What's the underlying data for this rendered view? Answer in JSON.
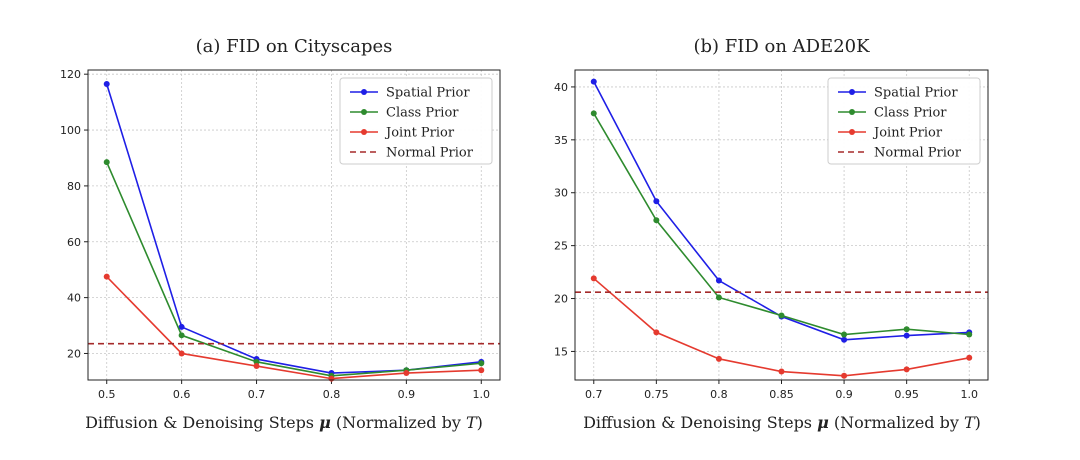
{
  "chart_data": [
    {
      "id": "cityscapes",
      "type": "line",
      "title": "(a) FID on Cityscapes",
      "xlabel_prefix": "Diffusion & Denoising Steps ",
      "xlabel_mu": "μ",
      "xlabel_mid": " (Normalized by ",
      "xlabel_T": "T",
      "xlabel_suffix": ")",
      "ylabel": "",
      "x": [
        0.5,
        0.6,
        0.7,
        0.8,
        0.9,
        1.0
      ],
      "xticks": [
        "0.5",
        "0.6",
        "0.7",
        "0.8",
        "0.9",
        "1.0"
      ],
      "xlim": [
        0.475,
        1.025
      ],
      "yticks": [
        20,
        40,
        60,
        80,
        100,
        120
      ],
      "ytick_labels": [
        "20",
        "40",
        "60",
        "80",
        "100",
        "120"
      ],
      "ylim": [
        10.5,
        121.5
      ],
      "grid": true,
      "legend_position": "top-right",
      "series": [
        {
          "name": "Spatial Prior",
          "color": "#1f1fe6",
          "style": "line-marker",
          "values": [
            116.5,
            29.5,
            18.0,
            13.0,
            14.0,
            17.0
          ]
        },
        {
          "name": "Class Prior",
          "color": "#2e8b2e",
          "style": "line-marker",
          "values": [
            88.5,
            26.5,
            17.0,
            12.0,
            14.0,
            16.5
          ]
        },
        {
          "name": "Joint Prior",
          "color": "#e53a2f",
          "style": "line-marker",
          "values": [
            47.5,
            20.0,
            15.5,
            11.0,
            13.0,
            14.0
          ]
        },
        {
          "name": "Normal Prior",
          "color": "#a52a2a",
          "style": "dashed-hline",
          "value": 23.5
        }
      ]
    },
    {
      "id": "ade20k",
      "type": "line",
      "title": "(b) FID on ADE20K",
      "xlabel_prefix": "Diffusion & Denoising Steps ",
      "xlabel_mu": "μ",
      "xlabel_mid": " (Normalized by ",
      "xlabel_T": "T",
      "xlabel_suffix": ")",
      "ylabel": "",
      "x": [
        0.7,
        0.75,
        0.8,
        0.85,
        0.9,
        0.95,
        1.0
      ],
      "xticks": [
        "0.7",
        "0.75",
        "0.8",
        "0.85",
        "0.9",
        "0.95",
        "1.0"
      ],
      "xlim": [
        0.685,
        1.015
      ],
      "yticks": [
        15,
        20,
        25,
        30,
        35,
        40
      ],
      "ytick_labels": [
        "15",
        "20",
        "25",
        "30",
        "35",
        "40"
      ],
      "ylim": [
        12.3,
        41.6
      ],
      "grid": true,
      "legend_position": "top-right",
      "series": [
        {
          "name": "Spatial Prior",
          "color": "#1f1fe6",
          "style": "line-marker",
          "values": [
            40.5,
            29.2,
            21.7,
            18.3,
            16.1,
            16.5,
            16.8
          ]
        },
        {
          "name": "Class Prior",
          "color": "#2e8b2e",
          "style": "line-marker",
          "values": [
            37.5,
            27.4,
            20.1,
            18.4,
            16.6,
            17.1,
            16.6
          ]
        },
        {
          "name": "Joint Prior",
          "color": "#e53a2f",
          "style": "line-marker",
          "values": [
            21.9,
            16.8,
            14.3,
            13.1,
            12.7,
            13.3,
            14.4
          ]
        },
        {
          "name": "Normal Prior",
          "color": "#a52a2a",
          "style": "dashed-hline",
          "value": 20.6
        }
      ]
    }
  ]
}
